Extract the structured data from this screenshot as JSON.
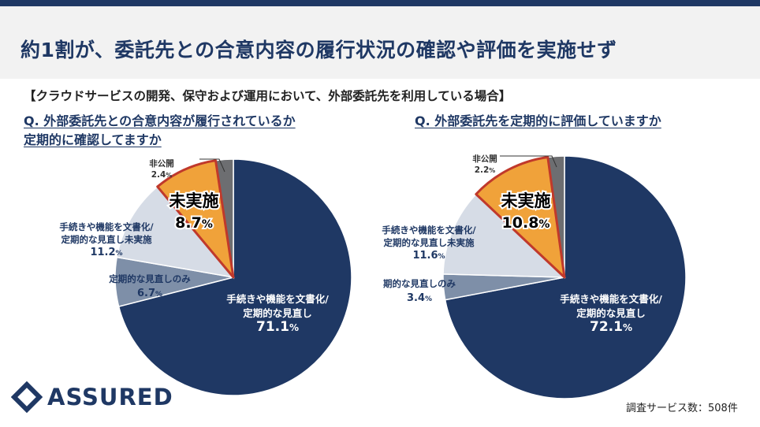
{
  "page": {
    "title": "約1割が、委託先との合意内容の履行状況の確認や評価を実施せず",
    "scope": "【クラウドサービスの開発、保守および運用において、外部委託先を利用している場合】",
    "footnote": "調査サービス数：508件",
    "logo_text": "ASSURED"
  },
  "colors": {
    "brand_navy": "#1f3864",
    "slice_main": "#1f3864",
    "slice_review_only": "#7e8fa8",
    "slice_no_regular_review": "#d6dce6",
    "slice_not_done": "#f0a23a",
    "slice_not_done_outline": "#c0392b",
    "slice_undisclosed": "#6d6e71"
  },
  "chart_data": [
    {
      "type": "pie",
      "title_lines": [
        "Q. 外部委託先との合意内容が履行されているか",
        "定期的に確認してますか"
      ],
      "slices": [
        {
          "name_lines": [
            "手続きや機能を文書化/",
            "定期的な見直し"
          ],
          "value": 71.1,
          "label": "71.1",
          "unit": "%"
        },
        {
          "name_lines": [
            "定期的な見直しのみ"
          ],
          "value": 6.7,
          "label": "6.7",
          "unit": "%"
        },
        {
          "name_lines": [
            "手続きや機能を文書化/",
            "定期的な見直し未実施"
          ],
          "value": 11.2,
          "label": "11.2",
          "unit": "%"
        },
        {
          "name_lines": [
            "未実施"
          ],
          "value": 8.7,
          "label": "8.7",
          "unit": "%",
          "highlight": true
        },
        {
          "name_lines": [
            "非公開"
          ],
          "value": 2.4,
          "label": "2.4",
          "unit": "%"
        }
      ]
    },
    {
      "type": "pie",
      "title_lines": [
        "Q. 外部委託先を定期的に評価していますか"
      ],
      "slices": [
        {
          "name_lines": [
            "手続きや機能を文書化/",
            "定期的な見直し"
          ],
          "value": 72.1,
          "label": "72.1",
          "unit": "%"
        },
        {
          "name_lines": [
            "期的な見直しのみ"
          ],
          "value": 3.4,
          "label": "3.4",
          "unit": "%"
        },
        {
          "name_lines": [
            "手続きや機能を文書化/",
            "定期的な見直し未実施"
          ],
          "value": 11.6,
          "label": "11.6",
          "unit": "%"
        },
        {
          "name_lines": [
            "未実施"
          ],
          "value": 10.8,
          "label": "10.8",
          "unit": "%",
          "highlight": true
        },
        {
          "name_lines": [
            "非公開"
          ],
          "value": 2.2,
          "label": "2.2",
          "unit": "%"
        }
      ]
    }
  ]
}
